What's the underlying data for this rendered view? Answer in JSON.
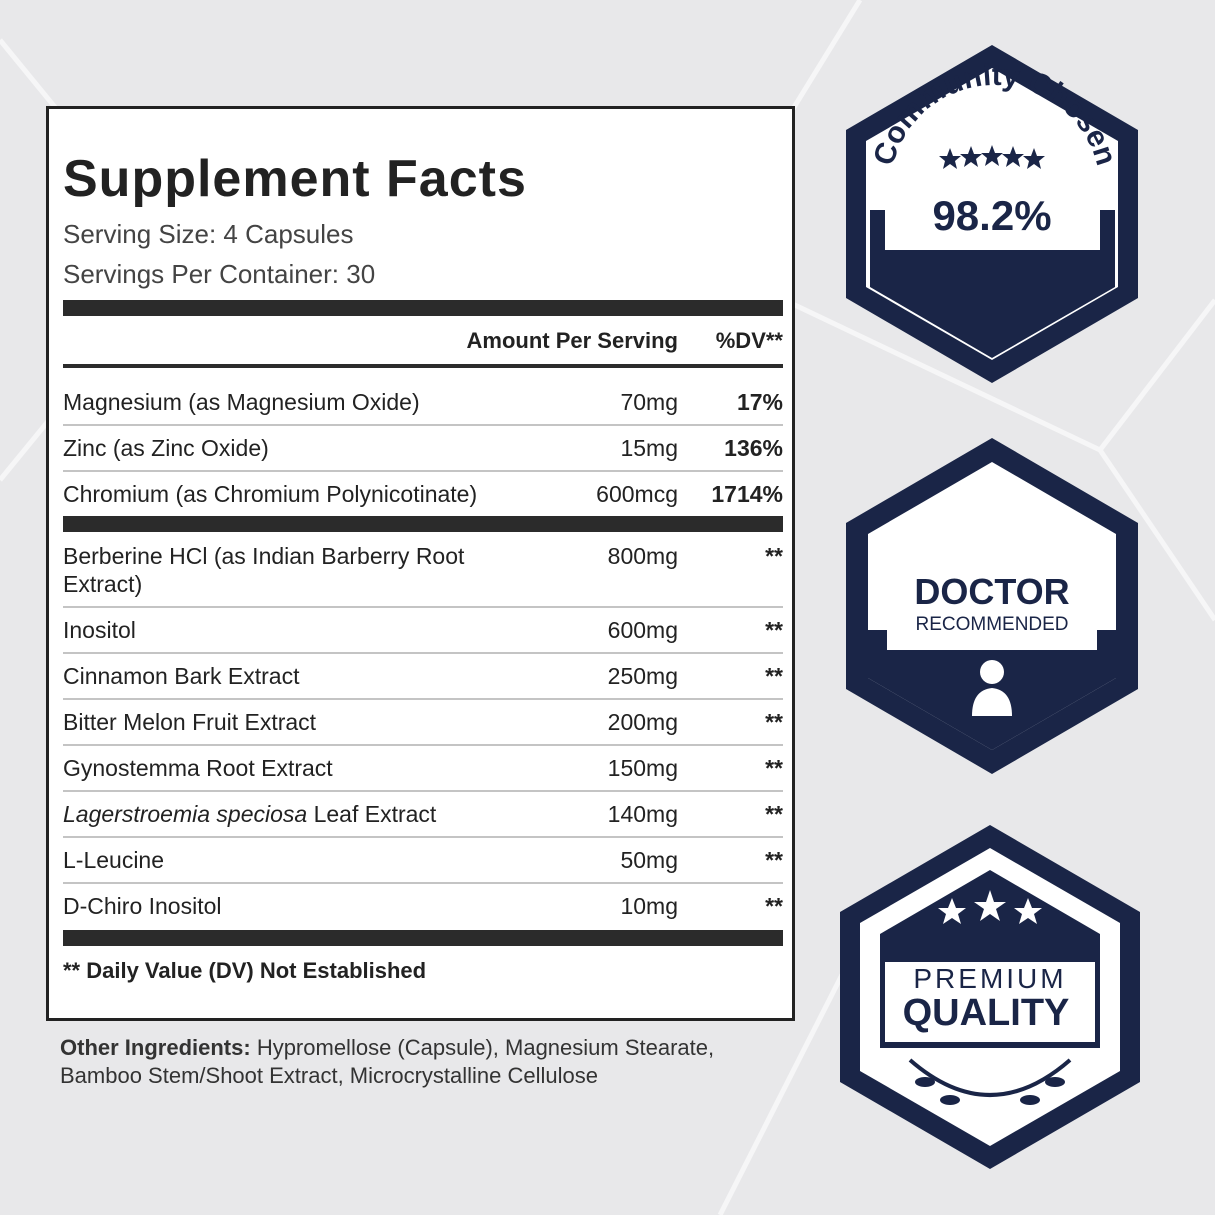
{
  "facts": {
    "title": "Supplement Facts",
    "serving_size": "Serving Size: 4 Capsules",
    "servings_per_container": "Servings Per Container: 30",
    "header": {
      "amount": "Amount Per Serving",
      "dv": "%DV**"
    },
    "rows_a": [
      {
        "name": "Magnesium (as Magnesium Oxide)",
        "amount": "70mg",
        "dv": "17%"
      },
      {
        "name": "Zinc (as Zinc Oxide)",
        "amount": "15mg",
        "dv": "136%"
      },
      {
        "name": "Chromium (as Chromium Polynicotinate)",
        "amount": "600mcg",
        "dv": "1714%"
      }
    ],
    "rows_b": [
      {
        "name": "Berberine HCl (as Indian Barberry Root Extract)",
        "amount": "800mg",
        "dv": "**"
      },
      {
        "name": "Inositol",
        "amount": "600mg",
        "dv": "**"
      },
      {
        "name": "Cinnamon Bark Extract",
        "amount": "250mg",
        "dv": "**"
      },
      {
        "name": "Bitter Melon Fruit Extract",
        "amount": "200mg",
        "dv": "**"
      },
      {
        "name": "Gynostemma Root Extract",
        "amount": "150mg",
        "dv": "**"
      },
      {
        "name_italic": "Lagerstroemia speciosa",
        "name": "Leaf Extract",
        "amount": "140mg",
        "dv": "**"
      },
      {
        "name": "L-Leucine",
        "amount": "50mg",
        "dv": "**"
      },
      {
        "name": "D-Chiro Inositol",
        "amount": "10mg",
        "dv": "**"
      }
    ],
    "footnote": "** Daily Value (DV) Not Established"
  },
  "other_ingredients": {
    "label": "Other Ingredients:",
    "text": "Hypromellose (Capsule), Magnesium Stearate, Bamboo Stem/Shoot Extract, Microcrystalline Cellulose"
  },
  "badges": {
    "community": {
      "arc": "Community Chosen",
      "value": "98.2%"
    },
    "doctor": {
      "line1": "DOCTOR",
      "line2": "RECOMMENDED"
    },
    "premium": {
      "line1": "PREMIUM",
      "line2": "QUALITY"
    }
  }
}
